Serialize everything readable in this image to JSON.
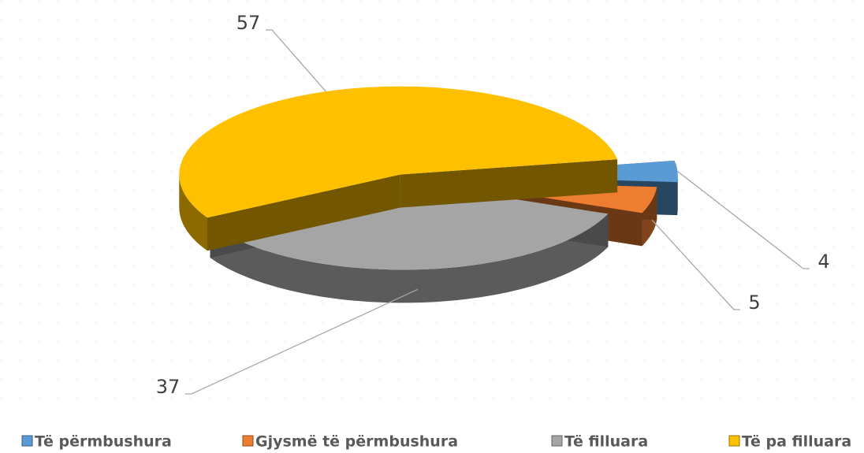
{
  "chart_data": {
    "type": "pie3d",
    "categories": [
      "Të përmbushura",
      "Gjysmë të përmbushura",
      "Të filluara",
      "Të pa filluara"
    ],
    "values": [
      4,
      5,
      37,
      57
    ],
    "colors": [
      "#5b9bd5",
      "#ed7d31",
      "#a5a5a5",
      "#ffc000"
    ],
    "legend": "bottom"
  }
}
